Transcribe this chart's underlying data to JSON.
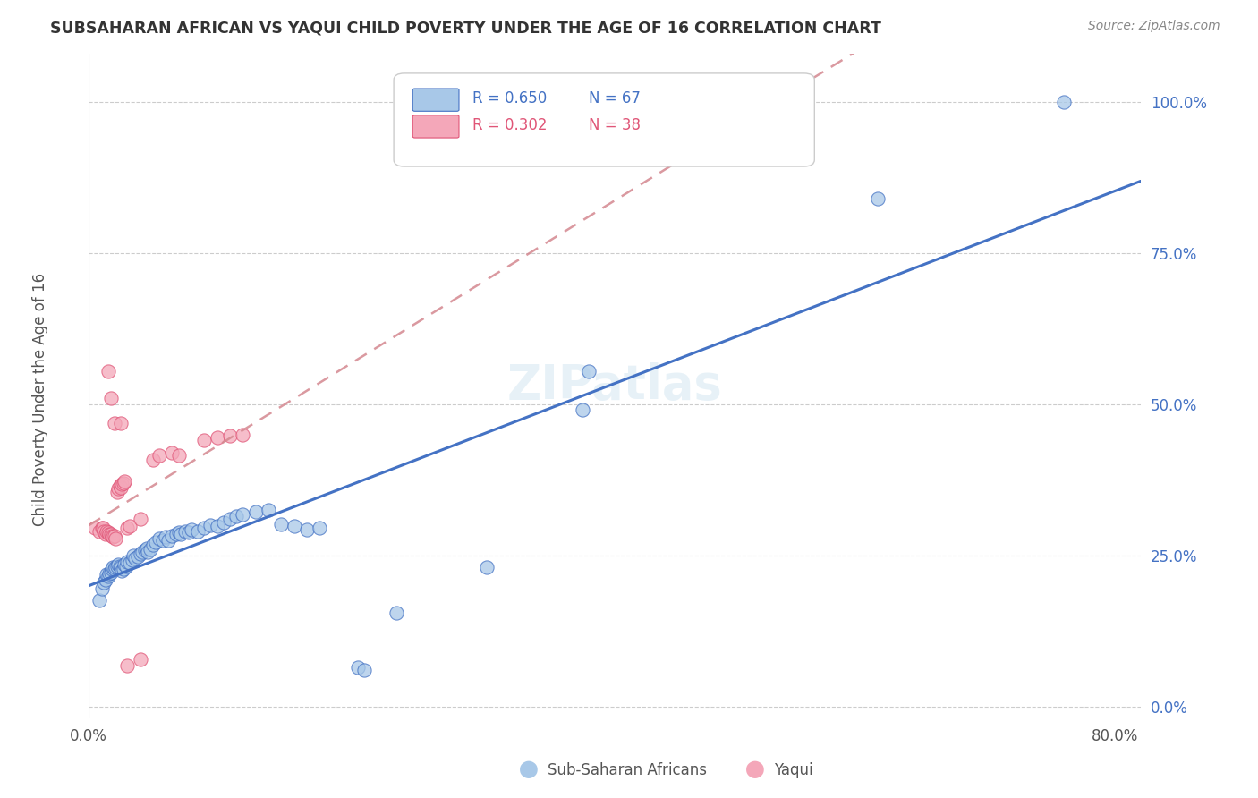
{
  "title": "SUBSAHARAN AFRICAN VS YAQUI CHILD POVERTY UNDER THE AGE OF 16 CORRELATION CHART",
  "source": "Source: ZipAtlas.com",
  "ylabel": "Child Poverty Under the Age of 16",
  "xlim": [
    0.0,
    0.82
  ],
  "ylim": [
    -0.02,
    1.08
  ],
  "yticks": [
    0.0,
    0.25,
    0.5,
    0.75,
    1.0
  ],
  "ytick_labels": [
    "0.0%",
    "25.0%",
    "50.0%",
    "75.0%",
    "100.0%"
  ],
  "xticks": [
    0.0,
    0.8
  ],
  "xtick_labels": [
    "0.0%",
    "80.0%"
  ],
  "legend_blue_r": "R = 0.650",
  "legend_blue_n": "N = 67",
  "legend_pink_r": "R = 0.302",
  "legend_pink_n": "N = 38",
  "blue_fill": "#a8c8e8",
  "blue_edge": "#4472c4",
  "pink_fill": "#f4a7b9",
  "pink_edge": "#e05577",
  "blue_line": "#4472c4",
  "pink_line": "#d4878f",
  "blue_scatter": [
    [
      0.008,
      0.175
    ],
    [
      0.01,
      0.195
    ],
    [
      0.012,
      0.205
    ],
    [
      0.013,
      0.21
    ],
    [
      0.014,
      0.218
    ],
    [
      0.015,
      0.215
    ],
    [
      0.016,
      0.22
    ],
    [
      0.017,
      0.222
    ],
    [
      0.018,
      0.228
    ],
    [
      0.019,
      0.23
    ],
    [
      0.02,
      0.228
    ],
    [
      0.021,
      0.23
    ],
    [
      0.022,
      0.232
    ],
    [
      0.023,
      0.235
    ],
    [
      0.024,
      0.232
    ],
    [
      0.025,
      0.23
    ],
    [
      0.026,
      0.225
    ],
    [
      0.027,
      0.228
    ],
    [
      0.028,
      0.235
    ],
    [
      0.029,
      0.232
    ],
    [
      0.03,
      0.24
    ],
    [
      0.032,
      0.238
    ],
    [
      0.034,
      0.242
    ],
    [
      0.035,
      0.25
    ],
    [
      0.036,
      0.245
    ],
    [
      0.038,
      0.248
    ],
    [
      0.04,
      0.252
    ],
    [
      0.042,
      0.255
    ],
    [
      0.044,
      0.258
    ],
    [
      0.045,
      0.262
    ],
    [
      0.046,
      0.255
    ],
    [
      0.048,
      0.26
    ],
    [
      0.05,
      0.268
    ],
    [
      0.052,
      0.272
    ],
    [
      0.055,
      0.278
    ],
    [
      0.058,
      0.275
    ],
    [
      0.06,
      0.28
    ],
    [
      0.062,
      0.275
    ],
    [
      0.065,
      0.282
    ],
    [
      0.068,
      0.285
    ],
    [
      0.07,
      0.288
    ],
    [
      0.072,
      0.285
    ],
    [
      0.075,
      0.29
    ],
    [
      0.078,
      0.288
    ],
    [
      0.08,
      0.292
    ],
    [
      0.085,
      0.29
    ],
    [
      0.09,
      0.295
    ],
    [
      0.095,
      0.3
    ],
    [
      0.1,
      0.298
    ],
    [
      0.105,
      0.305
    ],
    [
      0.11,
      0.31
    ],
    [
      0.115,
      0.315
    ],
    [
      0.12,
      0.318
    ],
    [
      0.13,
      0.322
    ],
    [
      0.14,
      0.325
    ],
    [
      0.15,
      0.302
    ],
    [
      0.16,
      0.298
    ],
    [
      0.17,
      0.292
    ],
    [
      0.18,
      0.295
    ],
    [
      0.21,
      0.065
    ],
    [
      0.215,
      0.06
    ],
    [
      0.24,
      0.155
    ],
    [
      0.31,
      0.23
    ],
    [
      0.385,
      0.49
    ],
    [
      0.39,
      0.555
    ],
    [
      0.615,
      0.84
    ],
    [
      0.76,
      1.0
    ]
  ],
  "pink_scatter": [
    [
      0.005,
      0.295
    ],
    [
      0.008,
      0.29
    ],
    [
      0.01,
      0.295
    ],
    [
      0.011,
      0.295
    ],
    [
      0.012,
      0.29
    ],
    [
      0.013,
      0.285
    ],
    [
      0.014,
      0.29
    ],
    [
      0.015,
      0.288
    ],
    [
      0.016,
      0.285
    ],
    [
      0.017,
      0.285
    ],
    [
      0.018,
      0.282
    ],
    [
      0.019,
      0.28
    ],
    [
      0.02,
      0.282
    ],
    [
      0.021,
      0.278
    ],
    [
      0.022,
      0.355
    ],
    [
      0.023,
      0.36
    ],
    [
      0.024,
      0.365
    ],
    [
      0.025,
      0.362
    ],
    [
      0.026,
      0.368
    ],
    [
      0.027,
      0.37
    ],
    [
      0.028,
      0.372
    ],
    [
      0.03,
      0.295
    ],
    [
      0.032,
      0.298
    ],
    [
      0.04,
      0.31
    ],
    [
      0.05,
      0.408
    ],
    [
      0.055,
      0.415
    ],
    [
      0.065,
      0.42
    ],
    [
      0.07,
      0.415
    ],
    [
      0.09,
      0.44
    ],
    [
      0.1,
      0.445
    ],
    [
      0.11,
      0.448
    ],
    [
      0.12,
      0.45
    ],
    [
      0.015,
      0.555
    ],
    [
      0.017,
      0.51
    ],
    [
      0.02,
      0.468
    ],
    [
      0.025,
      0.468
    ],
    [
      0.03,
      0.068
    ],
    [
      0.04,
      0.078
    ]
  ]
}
